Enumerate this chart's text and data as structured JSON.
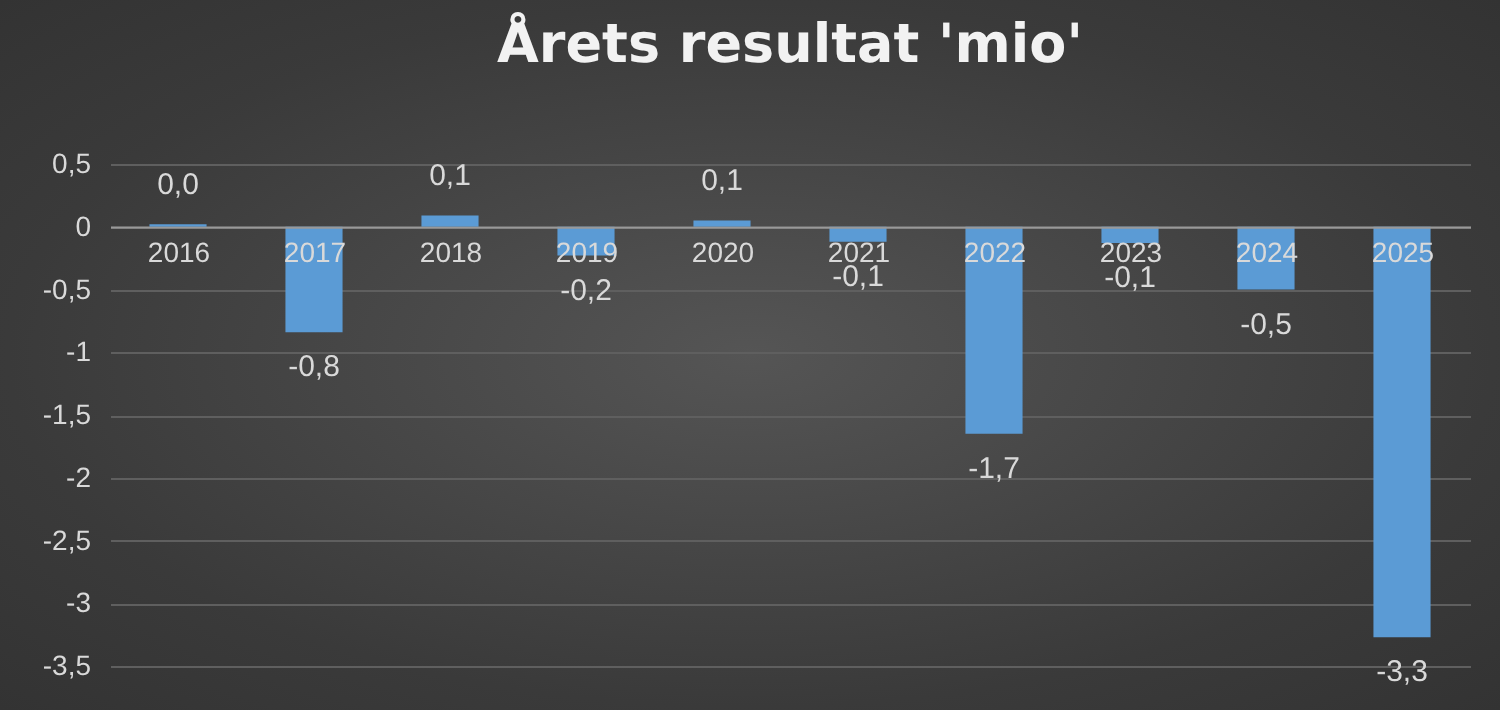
{
  "chart_data": {
    "type": "bar",
    "title": "Årets resultat 'mio'",
    "categories": [
      "2016",
      "2017",
      "2018",
      "2019",
      "2020",
      "2021",
      "2022",
      "2023",
      "2024",
      "2025"
    ],
    "values": [
      0.02,
      -0.84,
      0.09,
      -0.23,
      0.05,
      -0.12,
      -1.65,
      -0.13,
      -0.5,
      -3.27
    ],
    "value_labels": [
      "0,0",
      "-0,8",
      "0,1",
      "-0,2",
      "0,1",
      "-0,1",
      "-1,7",
      "-0,1",
      "-0,5",
      "-3,3"
    ],
    "color": "#5b9bd5",
    "ylim": [
      -3.5,
      0.5
    ],
    "yticks": [
      {
        "value": -3.5,
        "label": "-3,5"
      },
      -3,
      {
        "value": -2.5,
        "label": "-2,5"
      },
      -2,
      {
        "value": -1.5,
        "label": "-1,5"
      },
      -1,
      {
        "value": -0.5,
        "label": "-0,5"
      },
      0,
      {
        "value": 0.5,
        "label": "0,5"
      }
    ],
    "grid": true
  }
}
